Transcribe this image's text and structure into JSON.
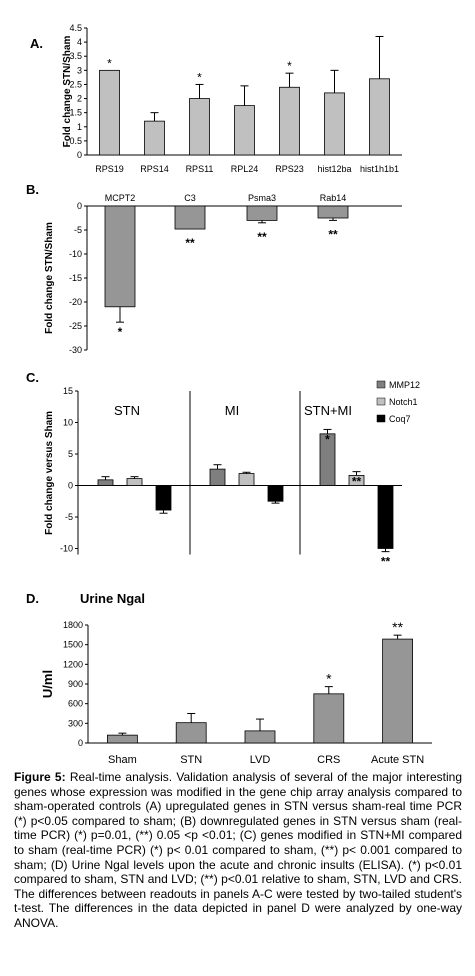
{
  "panels": {
    "a_label": "A.",
    "b_label": "B.",
    "c_label": "C.",
    "d_label": "D."
  },
  "caption": {
    "lead": "Figure 5:",
    "text": "Real-time analysis. Validation analysis of several of the major interesting genes whose expression was modified in the gene chip array analysis compared to sham-operated controls (A) upregulated genes in STN versus sham-real time PCR (*) p<0.05 compared to sham; (B) downregulated genes in STN versus sham (real-time PCR) (*) p=0.01, (**) 0.05 <p <0.01; (C) genes modified in STN+MI compared to sham (real-time PCR) (*) p< 0.01 compared to sham, (**) p< 0.001 compared to sham; (D) Urine Ngal levels upon the acute and chronic insults (ELISA). (*) p<0.01 compared to sham, STN and LVD; (**) p<0.01 relative to sham, STN, LVD and CRS. The differences between readouts in panels A-C were tested by two-tailed student's t-test. The differences in the data depicted in panel D were analyzed by one-way ANOVA."
  },
  "colors": {
    "bar_light": "#c0c0c0",
    "bar_mid": "#969696",
    "mmp12": "#7f7f7f",
    "notch1": "#c0c0c0",
    "coq7": "#000000"
  },
  "chart_data": [
    {
      "id": "A",
      "type": "bar",
      "title": "",
      "ylabel": "Fold change STN/Sham",
      "categories": [
        "RPS19",
        "RPS14",
        "RPS11",
        "RPL24",
        "RPS23",
        "hist12ba",
        "hist1h1b1"
      ],
      "values": [
        3.0,
        1.2,
        2.0,
        1.75,
        2.4,
        2.2,
        2.7
      ],
      "errors": [
        0,
        0.3,
        0.5,
        0.7,
        0.5,
        0.8,
        1.5
      ],
      "annotations": [
        "*",
        "",
        "*",
        "",
        "*",
        "",
        ""
      ],
      "ylim": [
        0,
        4.5
      ],
      "yticks": [
        "0",
        "0.5",
        "1",
        "1.5",
        "2",
        "2.5",
        "3",
        "3.5",
        "4",
        "4.5"
      ],
      "grid": false
    },
    {
      "id": "B",
      "type": "bar",
      "ylabel": "Fold change STN/Sham",
      "categories": [
        "MCPT2",
        "C3",
        "Psma3",
        "Rab14"
      ],
      "values": [
        -21,
        -4.8,
        -3.0,
        -2.5
      ],
      "errors": [
        3.2,
        0,
        0.5,
        0.5
      ],
      "annotations": [
        "*",
        "**",
        "**",
        "**"
      ],
      "ylim": [
        -30,
        0
      ],
      "yticks": [
        "0",
        "-5",
        "-10",
        "-15",
        "-20",
        "-25",
        "-30"
      ],
      "grid": false
    },
    {
      "id": "C",
      "type": "bar",
      "ylabel": "Fold change versus Sham",
      "groups": [
        "STN",
        "MI",
        "STN+MI"
      ],
      "series": [
        {
          "name": "MMP12",
          "values": [
            0.9,
            2.6,
            8.2
          ],
          "errors": [
            0.5,
            0.7,
            0.7
          ]
        },
        {
          "name": "Notch1",
          "values": [
            1.1,
            1.9,
            1.6
          ],
          "errors": [
            0.3,
            0.2,
            0.6
          ]
        },
        {
          "name": "Coq7",
          "values": [
            -3.9,
            -2.5,
            -10.0
          ],
          "errors": [
            0.5,
            0.3,
            0.5
          ]
        }
      ],
      "annotations": [
        [
          "",
          "",
          "*"
        ],
        [
          "",
          "",
          "**"
        ],
        [
          "",
          "",
          "**"
        ]
      ],
      "ylim": [
        -15,
        15
      ],
      "yticks": [
        "15",
        "10",
        "5",
        "0",
        "-5",
        "-10"
      ],
      "legend": "top-right",
      "grid": false
    },
    {
      "id": "D",
      "type": "bar",
      "title": "Urine Ngal",
      "ylabel": "U/ml",
      "categories": [
        "Sham",
        "STN",
        "LVD",
        "CRS",
        "Acute STN"
      ],
      "values": [
        120,
        310,
        185,
        750,
        1585
      ],
      "errors": [
        30,
        140,
        180,
        110,
        60
      ],
      "annotations": [
        "",
        "",
        "",
        "*",
        "**"
      ],
      "ylim": [
        0,
        1800
      ],
      "yticks": [
        "1800",
        "1500",
        "1200",
        "900",
        "600",
        "300",
        "0"
      ],
      "grid": false
    }
  ]
}
